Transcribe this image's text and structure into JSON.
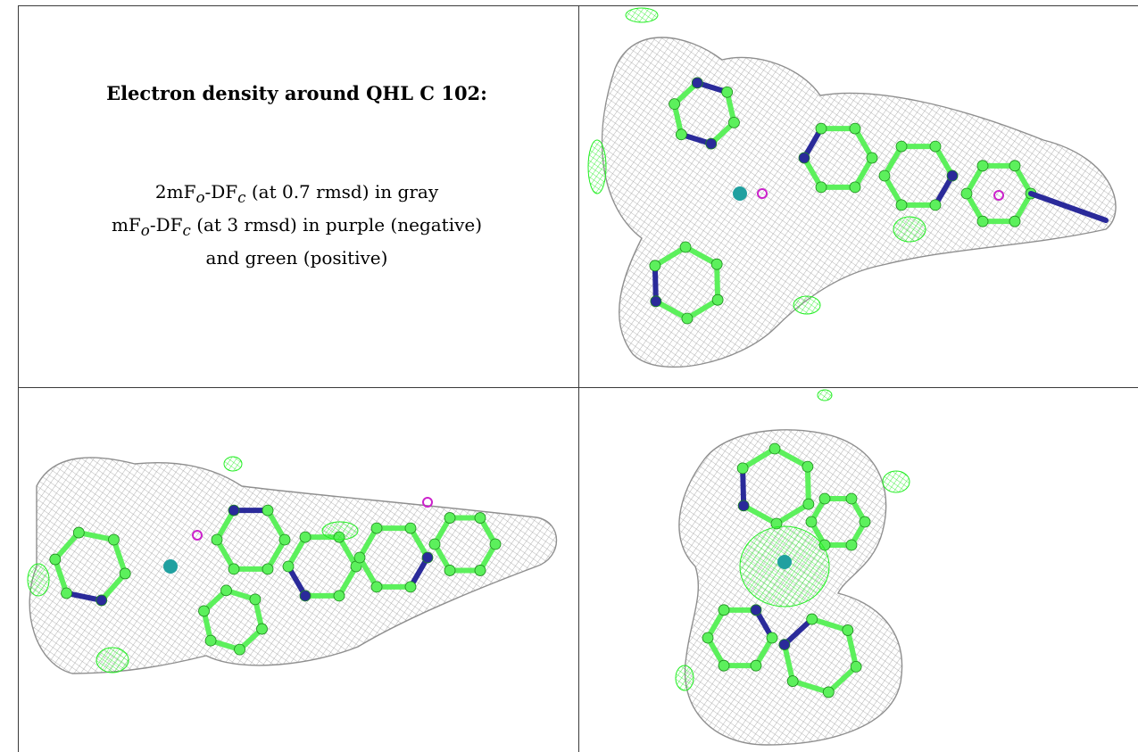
{
  "caption": {
    "title": "Electron density around QHL C 102:",
    "line1_prefix": "2mF",
    "line1_sub_o": "o",
    "line1_mid": "-DF",
    "line1_sub_c": "c",
    "line1_suffix": " (at 0.7 rmsd) in gray",
    "line2_prefix": "mF",
    "line2_sub_o": "o",
    "line2_mid": "-DF",
    "line2_sub_c": "c",
    "line2_suffix": " (at 3 rmsd) in purple (negative)",
    "line3": "and green (positive)"
  },
  "colors": {
    "mesh_gray": "#9a9a9a",
    "positive_green": "#22ee22",
    "atom_green": "#5cf05c",
    "nitrogen_blue": "#2a2a9a",
    "negative_purple": "#cc22cc",
    "metal_teal": "#20a0a0"
  },
  "views": [
    {
      "name": "density-view-top-right",
      "icon": "electron-density-map-icon"
    },
    {
      "name": "density-view-bottom-left",
      "icon": "electron-density-map-icon"
    },
    {
      "name": "density-view-bottom-right",
      "icon": "electron-density-map-icon"
    }
  ]
}
